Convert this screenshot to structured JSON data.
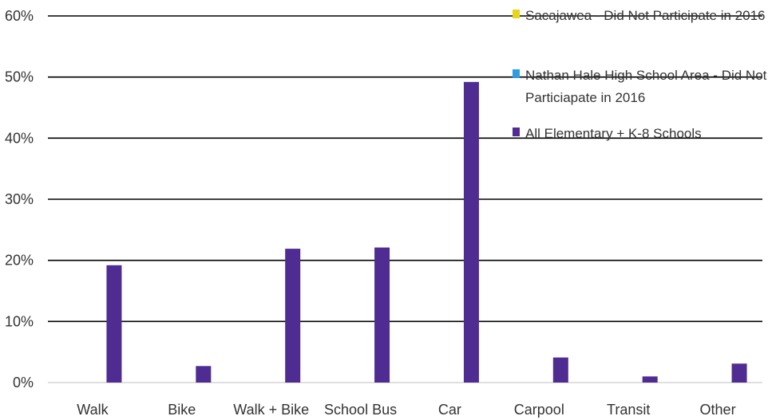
{
  "chart_data": {
    "type": "bar",
    "title": "",
    "xlabel": "",
    "ylabel": "",
    "categories": [
      "Walk",
      "Bike",
      "Walk + Bike",
      "School Bus",
      "Car",
      "Carpool",
      "Transit",
      "Other"
    ],
    "ylim": [
      0,
      60
    ],
    "yticks": [
      0,
      10,
      20,
      30,
      40,
      50,
      60
    ],
    "ytick_labels": [
      "0%",
      "10%",
      "20%",
      "30%",
      "40%",
      "50%",
      "60%"
    ],
    "grid": true,
    "legend_position": "top-right",
    "series": [
      {
        "name": "Sacajawea - Did Not Participate in 2016",
        "legend_lines": [
          "Sacajawea - Did Not Participate in 2016"
        ],
        "color": "#e6d51c",
        "values": [
          null,
          null,
          null,
          null,
          null,
          null,
          null,
          null
        ]
      },
      {
        "name": "Nathan Hale High School Area - Did Not Particiapate in 2016",
        "legend_lines": [
          "Nathan Hale High School Area - Did Not",
          "Particiapate in 2016"
        ],
        "color": "#2f9be0",
        "values": [
          null,
          null,
          null,
          null,
          null,
          null,
          null,
          null
        ]
      },
      {
        "name": "All Elementary + K-8 Schools",
        "legend_lines": [
          "All Elementary + K-8 Schools"
        ],
        "color": "#4f2c91",
        "values": [
          19.2,
          2.7,
          21.9,
          22.1,
          49.2,
          4.1,
          1.0,
          3.1
        ]
      }
    ]
  }
}
